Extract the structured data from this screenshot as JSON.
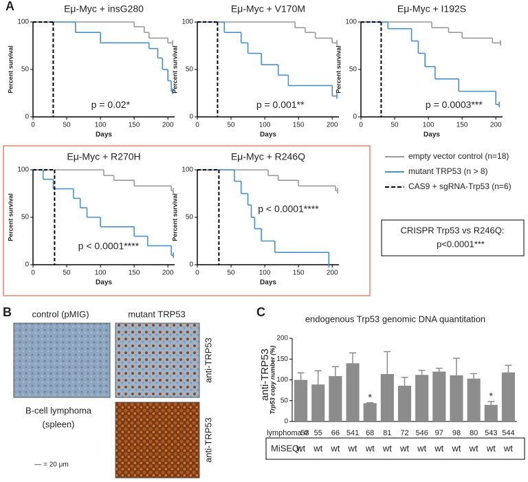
{
  "panel_labels": [
    "A",
    "B",
    "C"
  ],
  "legend": {
    "entries": [
      {
        "name": "empty vector control (n=18)",
        "color": "#9a9a9a",
        "dashed": false
      },
      {
        "name": "mutant TRP53 (n > 8)",
        "color": "#4a8fc9",
        "dashed": false
      },
      {
        "name": "CAS9 + sgRNA-Trp53 (n=6)",
        "color": "#000000",
        "dashed": true
      }
    ]
  },
  "crispr_box": {
    "line1": "CRISPR Trp53 vs R246Q:",
    "line2": "p<0.0001***"
  },
  "panel_b": {
    "control_label": "control (pMIG)",
    "mutant_label": "mutant TRP53",
    "stain_labels": [
      "anti-TRP53",
      "anti-TRP53"
    ],
    "tissue_label": [
      "B-cell lymphoma",
      "(spleen)"
    ],
    "scale_label": "— = 20 μm"
  },
  "chart_data": [
    {
      "type": "survival",
      "title": "Eμ-Myc + insG280",
      "xlabel": "Days",
      "ylabel": "Percent survival",
      "annotation": "p = 0.02*",
      "xlim": [
        0,
        210
      ],
      "ylim": [
        0,
        100
      ],
      "xticks": [
        0,
        50,
        100,
        150,
        200
      ],
      "yticks": [
        0,
        50,
        100
      ],
      "series": [
        {
          "color": "#9a9a9a",
          "x": [
            0,
            150,
            165,
            172,
            200,
            207
          ],
          "values": [
            100,
            95,
            89,
            83,
            78,
            78
          ]
        },
        {
          "color": "#4a8fc9",
          "x": [
            0,
            63,
            100,
            172,
            185,
            192,
            200,
            205,
            207
          ],
          "values": [
            100,
            89,
            78,
            72,
            62,
            50,
            38,
            27,
            27
          ]
        },
        {
          "color": "#000000",
          "dashed": true,
          "x": [
            0,
            30
          ],
          "values": [
            100,
            0
          ]
        }
      ]
    },
    {
      "type": "survival",
      "title": "Eμ-Myc + V170M",
      "xlabel": "Days",
      "ylabel": "Percent survival",
      "annotation": "p = 0.001**",
      "xlim": [
        0,
        210
      ],
      "ylim": [
        0,
        100
      ],
      "xticks": [
        0,
        50,
        100,
        150,
        200
      ],
      "yticks": [
        0,
        50,
        100
      ],
      "series": [
        {
          "color": "#9a9a9a",
          "x": [
            0,
            145,
            160,
            175,
            200,
            207
          ],
          "values": [
            100,
            94,
            89,
            83,
            78,
            78
          ]
        },
        {
          "color": "#4a8fc9",
          "x": [
            0,
            40,
            65,
            75,
            95,
            120,
            135,
            200,
            207
          ],
          "values": [
            100,
            89,
            78,
            67,
            55,
            44,
            33,
            22,
            22
          ]
        },
        {
          "color": "#000000",
          "dashed": true,
          "x": [
            0,
            30
          ],
          "values": [
            100,
            0
          ]
        }
      ]
    },
    {
      "type": "survival",
      "title": "Eμ-Myc + I192S",
      "xlabel": "Days",
      "ylabel": "Percent survival",
      "annotation": "p = 0.0003***",
      "xlim": [
        0,
        210
      ],
      "ylim": [
        0,
        100
      ],
      "xticks": [
        0,
        50,
        100,
        150,
        200
      ],
      "yticks": [
        0,
        50,
        100
      ],
      "series": [
        {
          "color": "#9a9a9a",
          "x": [
            0,
            105,
            130,
            150,
            195,
            207
          ],
          "values": [
            100,
            94,
            89,
            83,
            78,
            78
          ]
        },
        {
          "color": "#4a8fc9",
          "x": [
            0,
            40,
            75,
            85,
            95,
            110,
            145,
            200,
            205
          ],
          "values": [
            100,
            93,
            80,
            67,
            53,
            40,
            27,
            13,
            13
          ]
        },
        {
          "color": "#000000",
          "dashed": true,
          "x": [
            0,
            30
          ],
          "values": [
            100,
            0
          ]
        }
      ]
    },
    {
      "type": "survival",
      "title": "Eμ-Myc + R270H",
      "xlabel": "Days",
      "ylabel": "Percent survival",
      "annotation": "p < 0.0001****",
      "xlim": [
        0,
        210
      ],
      "ylim": [
        0,
        100
      ],
      "xticks": [
        0,
        50,
        100,
        150,
        200
      ],
      "yticks": [
        0,
        50,
        100
      ],
      "series": [
        {
          "color": "#9a9a9a",
          "x": [
            0,
            105,
            120,
            150,
            205,
            208
          ],
          "values": [
            100,
            94,
            89,
            83,
            78,
            78
          ]
        },
        {
          "color": "#4a8fc9",
          "x": [
            0,
            15,
            30,
            60,
            70,
            80,
            100,
            150,
            170,
            205,
            208
          ],
          "values": [
            100,
            90,
            80,
            70,
            60,
            50,
            40,
            30,
            20,
            10,
            10
          ]
        },
        {
          "color": "#000000",
          "dashed": true,
          "x": [
            0,
            32
          ],
          "values": [
            100,
            0
          ]
        }
      ]
    },
    {
      "type": "survival",
      "title": "Eμ-Myc + R246Q",
      "xlabel": "Days",
      "ylabel": "Percent survival",
      "annotation": "p < 0.0001****",
      "xlim": [
        0,
        210
      ],
      "ylim": [
        0,
        100
      ],
      "xticks": [
        0,
        50,
        100,
        150,
        200
      ],
      "yticks": [
        0,
        50,
        100
      ],
      "series": [
        {
          "color": "#9a9a9a",
          "x": [
            0,
            105,
            120,
            150,
            205,
            208
          ],
          "values": [
            100,
            94,
            89,
            83,
            78,
            78
          ]
        },
        {
          "color": "#4a8fc9",
          "x": [
            0,
            55,
            65,
            75,
            80,
            85,
            95,
            115,
            195
          ],
          "values": [
            100,
            88,
            75,
            63,
            50,
            38,
            25,
            13,
            0
          ]
        },
        {
          "color": "#000000",
          "dashed": true,
          "x": [
            0,
            32
          ],
          "values": [
            100,
            0
          ]
        }
      ]
    },
    {
      "type": "bar",
      "title": "endogenous Trp53 genomic DNA quantitation",
      "ylabel": "Trp53 copy number (%)",
      "group_label": "anti-TRP53",
      "xlabel": "lymphoma #",
      "categories": [
        "53",
        "55",
        "66",
        "541",
        "68",
        "81",
        "72",
        "546",
        "97",
        "98",
        "80",
        "543",
        "544"
      ],
      "values": [
        100,
        89,
        109,
        140,
        44,
        114,
        86,
        112,
        120,
        111,
        103,
        40,
        118
      ],
      "errors": [
        17,
        33,
        23,
        25,
        1,
        54,
        20,
        11,
        8,
        41,
        12,
        8,
        17
      ],
      "significance": [
        null,
        null,
        null,
        null,
        "*",
        null,
        null,
        null,
        null,
        null,
        null,
        "*",
        null
      ],
      "miseq_label": "MiSEQ:",
      "miseq": [
        "wt",
        "wt",
        "wt",
        "wt",
        "wt",
        "wt",
        "wt",
        "wt",
        "wt",
        "wt",
        "wt",
        "wt",
        "wt"
      ],
      "color": "#8c8c8c",
      "ylim": [
        0,
        200
      ],
      "yticks": [
        0,
        50,
        100,
        150,
        200
      ]
    }
  ]
}
